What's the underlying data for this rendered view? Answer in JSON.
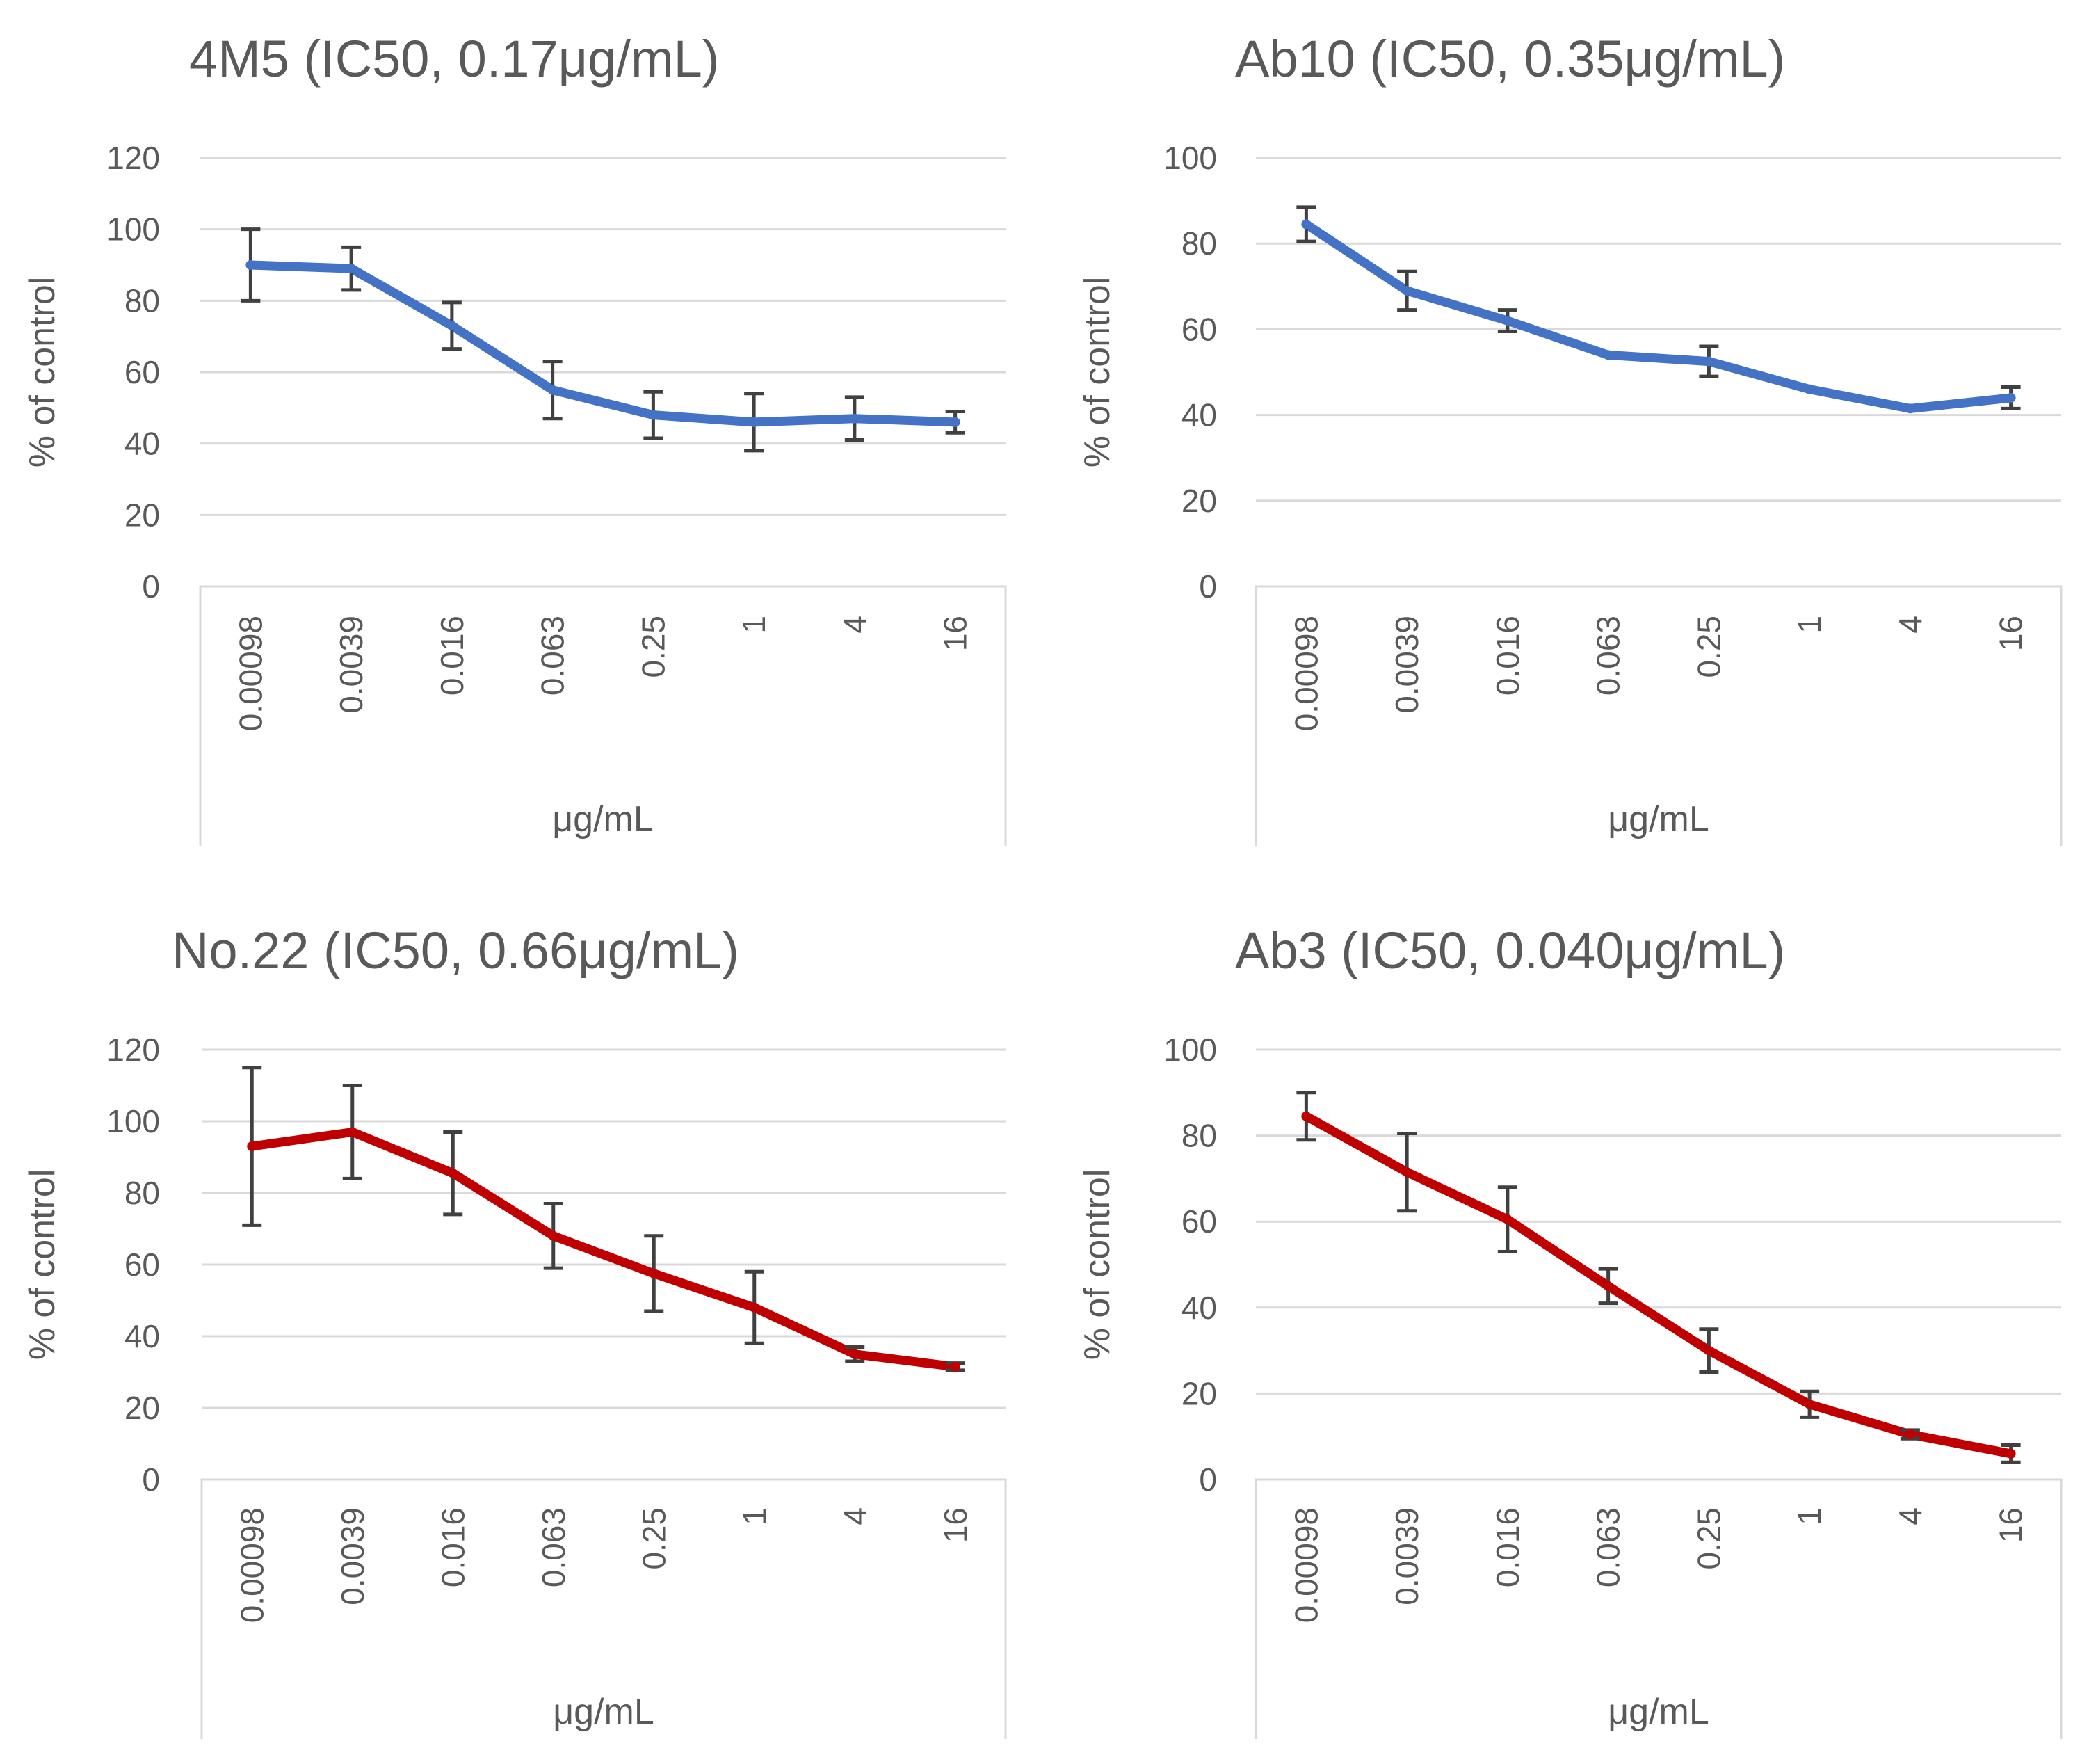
{
  "chart_data": [
    {
      "type": "line",
      "title": "4M5 (IC50, 0.17μg/mL)",
      "xlabel": "μg/mL",
      "ylabel": "% of control",
      "categories": [
        "0.00098",
        "0.0039",
        "0.016",
        "0.063",
        "0.25",
        "1",
        "4",
        "16"
      ],
      "ylim": [
        0,
        120
      ],
      "yticks": [
        "0",
        "20",
        "40",
        "60",
        "80",
        "100",
        "120"
      ],
      "color": "#4472c4",
      "series": [
        {
          "name": "4M5",
          "values": [
            90,
            89,
            73,
            55,
            48,
            46,
            47,
            46
          ],
          "errors": [
            10,
            6,
            6.5,
            8,
            6.5,
            8,
            6,
            3
          ]
        }
      ]
    },
    {
      "type": "line",
      "title": "Ab10 (IC50, 0.35μg/mL)",
      "xlabel": "μg/mL",
      "ylabel": "% of control",
      "categories": [
        "0.00098",
        "0.0039",
        "0.016",
        "0.063",
        "0.25",
        "1",
        "4",
        "16"
      ],
      "ylim": [
        0,
        100
      ],
      "yticks": [
        "0",
        "20",
        "40",
        "60",
        "80",
        "100"
      ],
      "color": "#4472c4",
      "series": [
        {
          "name": "Ab10",
          "values": [
            84.5,
            69,
            62,
            54,
            52.5,
            46,
            41.5,
            44
          ],
          "errors": [
            4,
            4.5,
            2.5,
            0,
            3.5,
            0,
            0,
            2.5
          ]
        }
      ]
    },
    {
      "type": "line",
      "title": "No.22 (IC50, 0.66μg/mL)",
      "xlabel": "μg/mL",
      "ylabel": "% of control",
      "categories": [
        "0.00098",
        "0.0039",
        "0.016",
        "0.063",
        "0.25",
        "1",
        "4",
        "16"
      ],
      "ylim": [
        0,
        120
      ],
      "yticks": [
        "0",
        "20",
        "40",
        "60",
        "80",
        "100",
        "120"
      ],
      "color": "#c00000",
      "series": [
        {
          "name": "No.22",
          "values": [
            93,
            97,
            85.5,
            68,
            57.5,
            48,
            35,
            31.5
          ],
          "errors": [
            22,
            13,
            11.5,
            9,
            10.5,
            10,
            2,
            1
          ]
        }
      ]
    },
    {
      "type": "line",
      "title": "Ab3 (IC50, 0.040μg/mL)",
      "xlabel": "μg/mL",
      "ylabel": "% of control",
      "categories": [
        "0.00098",
        "0.0039",
        "0.016",
        "0.063",
        "0.25",
        "1",
        "4",
        "16"
      ],
      "ylim": [
        0,
        100
      ],
      "yticks": [
        "0",
        "20",
        "40",
        "60",
        "80",
        "100"
      ],
      "color": "#c00000",
      "series": [
        {
          "name": "Ab3",
          "values": [
            84.5,
            71.5,
            60.5,
            45,
            30,
            17.5,
            10.5,
            6
          ],
          "errors": [
            5.5,
            9,
            7.5,
            4,
            5,
            3,
            1,
            2
          ]
        }
      ]
    }
  ]
}
